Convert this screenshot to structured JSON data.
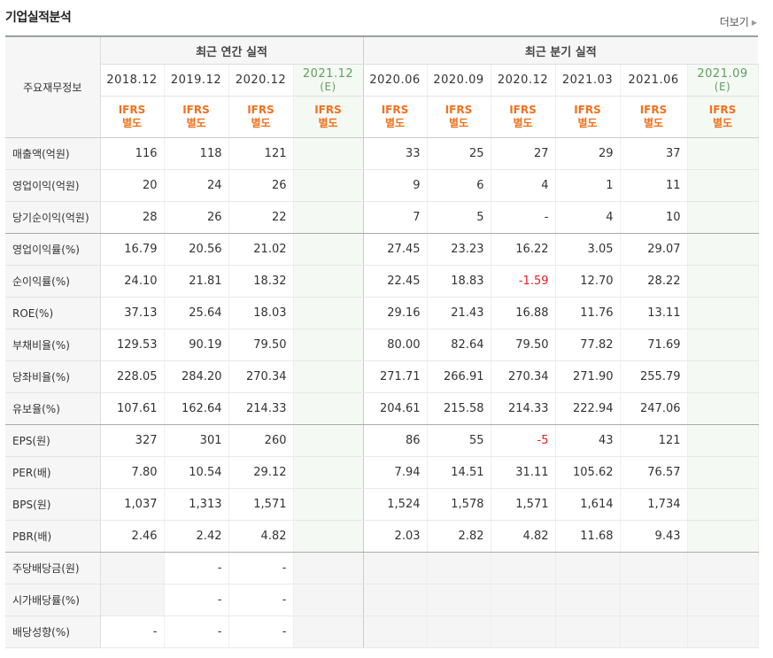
{
  "header": {
    "title": "기업실적분석",
    "more_label": "더보기"
  },
  "table": {
    "corner_label": "주요재무정보",
    "group_annual": "최근 연간 실적",
    "group_quarter": "최근 분기 실적",
    "periods": [
      {
        "label": "2018.12",
        "est": ""
      },
      {
        "label": "2019.12",
        "est": ""
      },
      {
        "label": "2020.12",
        "est": ""
      },
      {
        "label": "2021.12",
        "est": "(E)"
      },
      {
        "label": "2020.06",
        "est": ""
      },
      {
        "label": "2020.09",
        "est": ""
      },
      {
        "label": "2020.12",
        "est": ""
      },
      {
        "label": "2021.03",
        "est": ""
      },
      {
        "label": "2021.06",
        "est": ""
      },
      {
        "label": "2021.09",
        "est": "(E)"
      }
    ],
    "ifrs_line1": "IFRS",
    "ifrs_line2": "별도",
    "rows": [
      {
        "label": "매출액(억원)",
        "values": [
          "116",
          "118",
          "121",
          "",
          "33",
          "25",
          "27",
          "29",
          "37",
          ""
        ]
      },
      {
        "label": "영업이익(억원)",
        "values": [
          "20",
          "24",
          "26",
          "",
          "9",
          "6",
          "4",
          "1",
          "11",
          ""
        ]
      },
      {
        "label": "당기순이익(억원)",
        "values": [
          "28",
          "26",
          "22",
          "",
          "7",
          "5",
          "-",
          "4",
          "10",
          ""
        ]
      },
      {
        "label": "영업이익률(%)",
        "values": [
          "16.79",
          "20.56",
          "21.02",
          "",
          "27.45",
          "23.23",
          "16.22",
          "3.05",
          "29.07",
          ""
        ]
      },
      {
        "label": "순이익률(%)",
        "values": [
          "24.10",
          "21.81",
          "18.32",
          "",
          "22.45",
          "18.83",
          "-1.59",
          "12.70",
          "28.22",
          ""
        ]
      },
      {
        "label": "ROE(%)",
        "values": [
          "37.13",
          "25.64",
          "18.03",
          "",
          "29.16",
          "21.43",
          "16.88",
          "11.76",
          "13.11",
          ""
        ]
      },
      {
        "label": "부채비율(%)",
        "values": [
          "129.53",
          "90.19",
          "79.50",
          "",
          "80.00",
          "82.64",
          "79.50",
          "77.82",
          "71.69",
          ""
        ]
      },
      {
        "label": "당좌비율(%)",
        "values": [
          "228.05",
          "284.20",
          "270.34",
          "",
          "271.71",
          "266.91",
          "270.34",
          "271.90",
          "255.79",
          ""
        ]
      },
      {
        "label": "유보율(%)",
        "values": [
          "107.61",
          "162.64",
          "214.33",
          "",
          "204.61",
          "215.58",
          "214.33",
          "222.94",
          "247.06",
          ""
        ]
      },
      {
        "label": "EPS(원)",
        "values": [
          "327",
          "301",
          "260",
          "",
          "86",
          "55",
          "-5",
          "43",
          "121",
          ""
        ]
      },
      {
        "label": "PER(배)",
        "values": [
          "7.80",
          "10.54",
          "29.12",
          "",
          "7.94",
          "14.51",
          "31.11",
          "105.62",
          "76.57",
          ""
        ]
      },
      {
        "label": "BPS(원)",
        "values": [
          "1,037",
          "1,313",
          "1,571",
          "",
          "1,524",
          "1,578",
          "1,571",
          "1,614",
          "1,734",
          ""
        ]
      },
      {
        "label": "PBR(배)",
        "values": [
          "2.46",
          "2.42",
          "4.82",
          "",
          "2.03",
          "2.82",
          "4.82",
          "11.68",
          "9.43",
          ""
        ]
      },
      {
        "label": "주당배당금(원)",
        "values": [
          "",
          "-",
          "-",
          "",
          "",
          "",
          "",
          "",
          "",
          ""
        ]
      },
      {
        "label": "시가배당률(%)",
        "values": [
          "",
          "-",
          "-",
          "",
          "",
          "",
          "",
          "",
          "",
          ""
        ]
      },
      {
        "label": "배당성향(%)",
        "values": [
          "-",
          "-",
          "-",
          "",
          "",
          "",
          "",
          "",
          "",
          ""
        ]
      }
    ],
    "negative_color": "#e02020",
    "ifrs_color": "#f2711c",
    "estimate_color": "#5f9e5f"
  }
}
